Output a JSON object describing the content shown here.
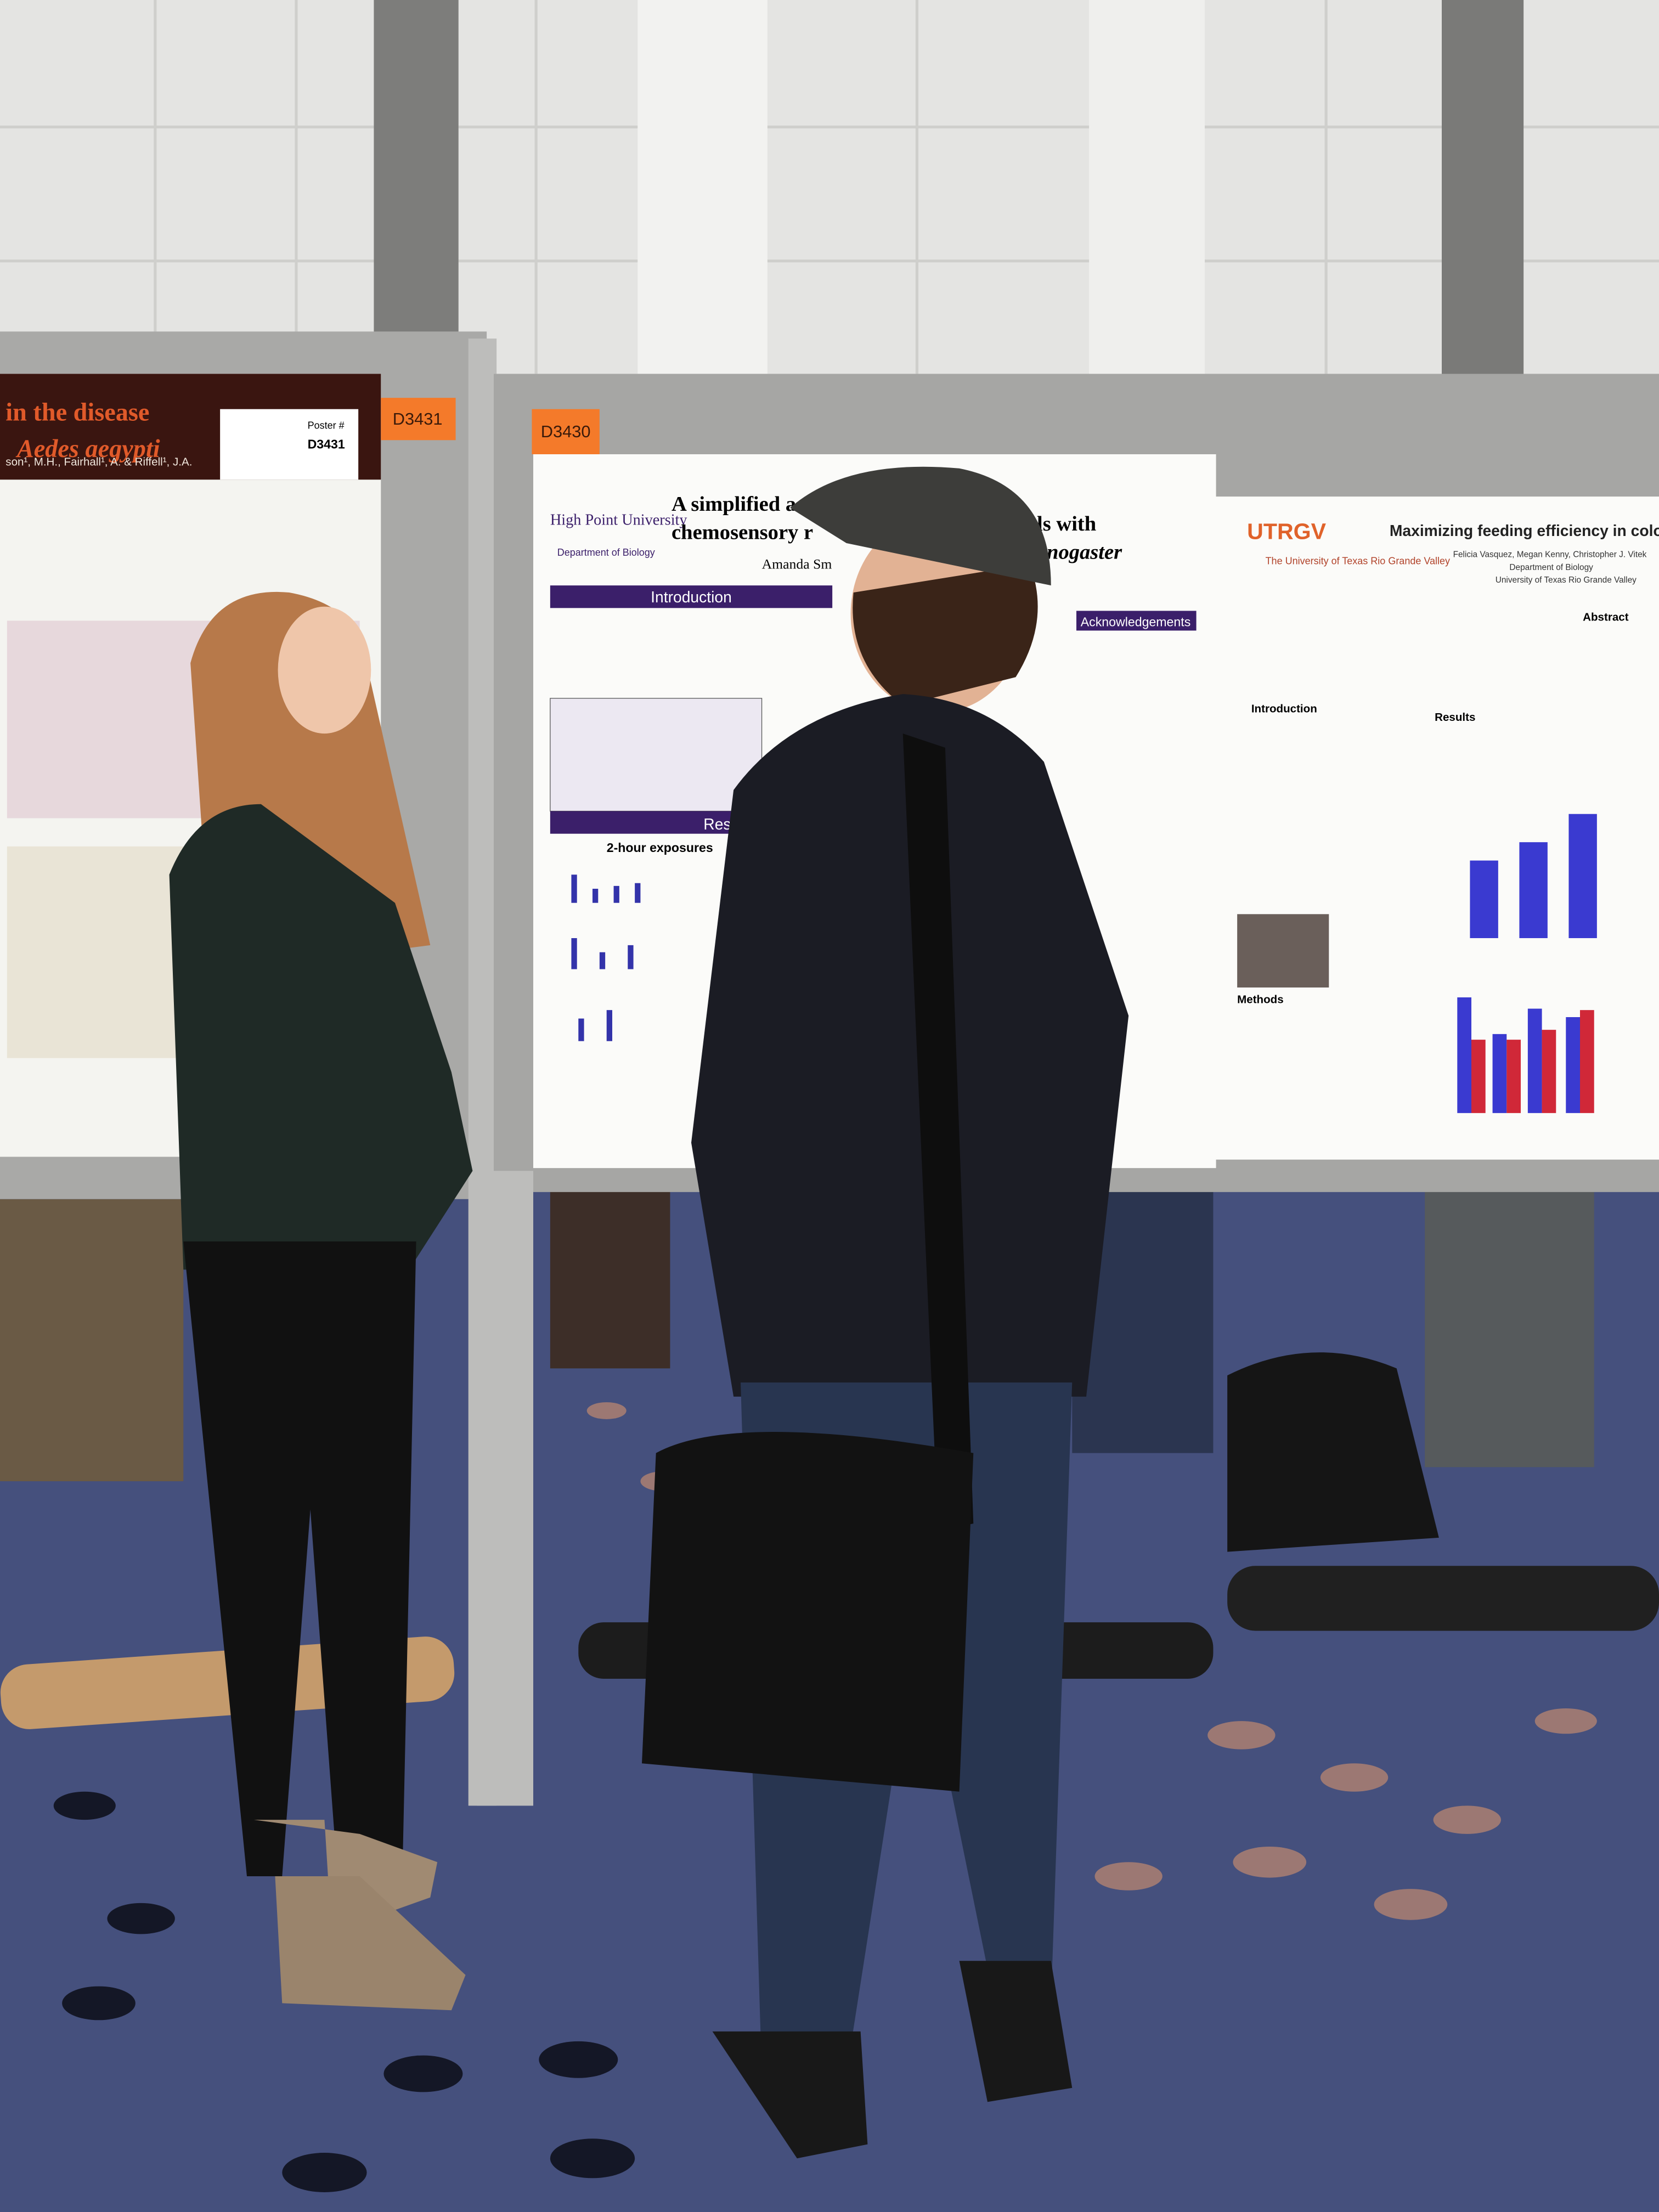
{
  "posters": {
    "left": {
      "tag": "D3431",
      "title_line1": "in the disease",
      "title_line2": "Aedes aegypti",
      "poster_label": "Poster #",
      "poster_number": "D3431",
      "authors": "son¹, M.H., Fairhall¹, A. & Riffell¹, J.A."
    },
    "middle": {
      "tag": "D3430",
      "title_line1": "A simplified a",
      "title_line1_end": "ls with",
      "title_line2": "chemosensory r",
      "title_line2_end": "nogaster",
      "university": "High Point University",
      "department": "Department of Biology",
      "author": "Amanda Sm",
      "introduction": "Introduction",
      "results": "Results",
      "acknowledgements": "Acknowledgements",
      "exposures": "2-hour exposures"
    },
    "right": {
      "logo": "UTRGV",
      "university": "The University of Texas Rio Grande Valley",
      "title": "Maximizing feeding efficiency in colony",
      "authors": "Felicia Vasquez, Megan Kenny, Christopher J. Vitek",
      "department": "Department of Biology",
      "institution": "University of Texas Rio Grande Valley",
      "abstract": "Abstract",
      "introduction": "Introduction",
      "results": "Results",
      "methods": "Methods"
    }
  }
}
